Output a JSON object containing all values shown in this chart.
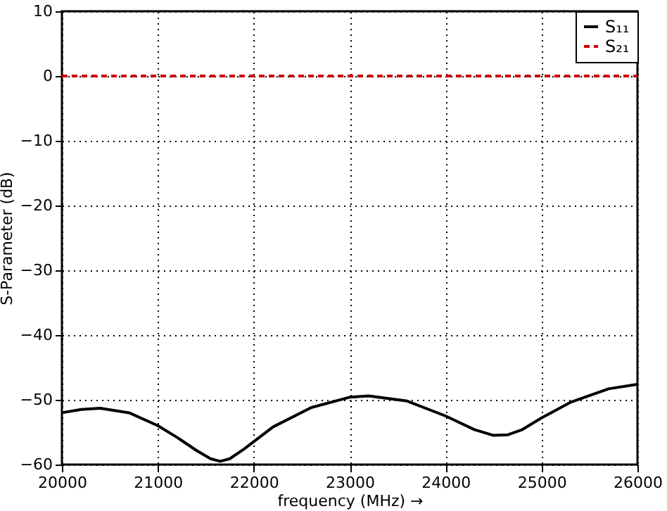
{
  "chart_data": {
    "type": "line",
    "xlabel": "frequency (MHz) →",
    "ylabel": "S-Parameter (dB)",
    "x": [
      20000,
      20200,
      20400,
      20700,
      21000,
      21200,
      21400,
      21550,
      21650,
      21750,
      21900,
      22200,
      22600,
      23000,
      23200,
      23600,
      24000,
      24300,
      24500,
      24650,
      24800,
      25000,
      25300,
      25700,
      26000
    ],
    "series": [
      {
        "name": "S₁₁",
        "color": "#000000",
        "line_style": "solid",
        "values": [
          -52,
          -51.5,
          -51.3,
          -52,
          -54,
          -55.8,
          -57.8,
          -59.1,
          -59.5,
          -59.1,
          -57.6,
          -54.2,
          -51.2,
          -49.6,
          -49.4,
          -50.2,
          -52.5,
          -54.6,
          -55.5,
          -55.4,
          -54.6,
          -52.8,
          -50.4,
          -48.3,
          -47.6
        ]
      },
      {
        "name": "S₂₁",
        "color": "#cc0000",
        "line_style": "dashed",
        "values": [
          0,
          0,
          0,
          0,
          0,
          0,
          0,
          0,
          0,
          0,
          0,
          0,
          0,
          0,
          0,
          0,
          0,
          0,
          0,
          0,
          0,
          0,
          0,
          0,
          0
        ]
      }
    ],
    "xlim": [
      20000,
      26000
    ],
    "ylim": [
      -60,
      10
    ],
    "xticks": [
      20000,
      21000,
      22000,
      23000,
      24000,
      25000,
      26000
    ],
    "yticks": [
      -60,
      -50,
      -40,
      -30,
      -20,
      -10,
      0,
      10
    ],
    "grid": true,
    "legend": "top right"
  }
}
